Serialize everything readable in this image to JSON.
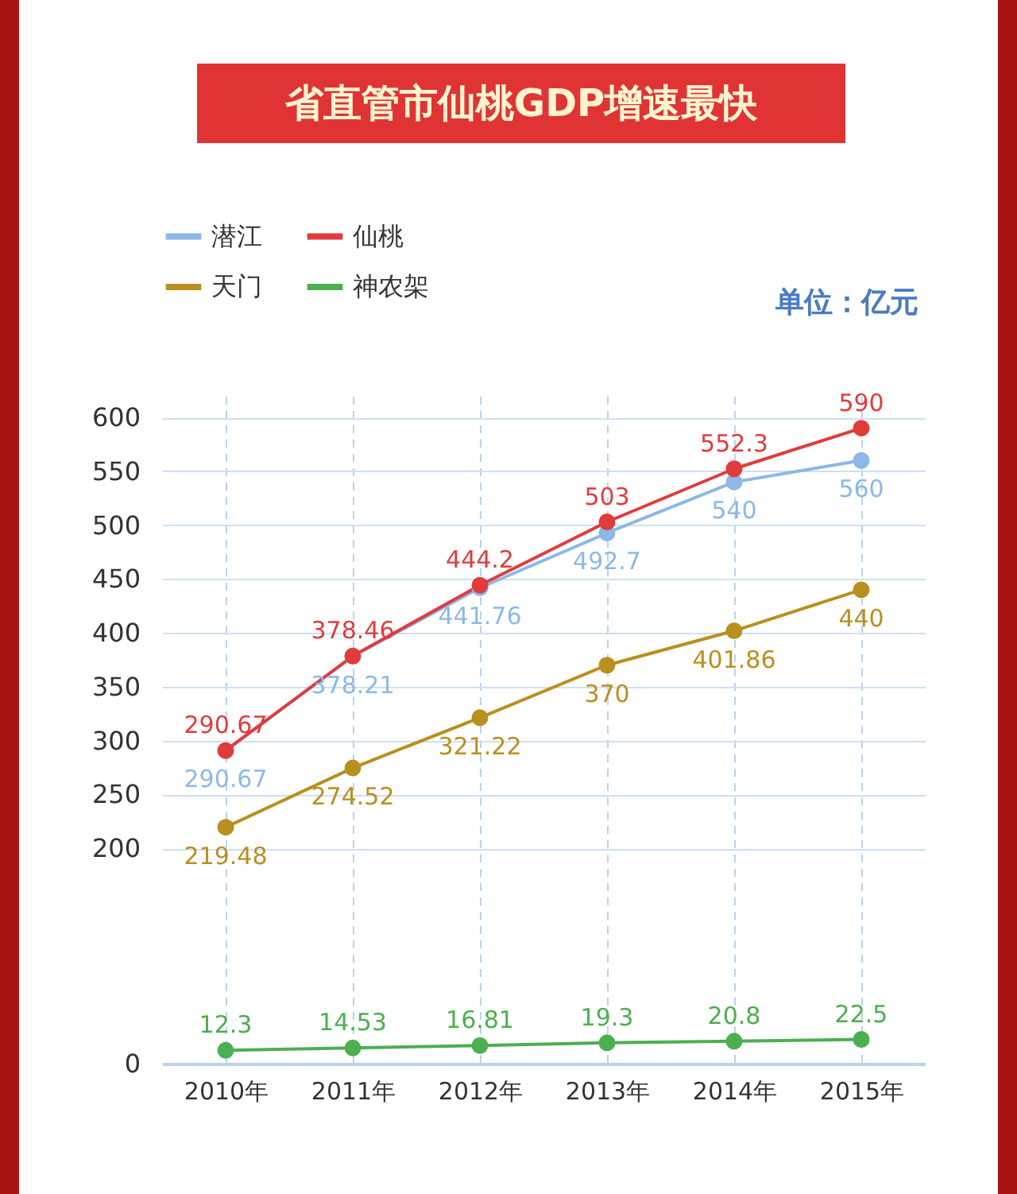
{
  "chart_data": {
    "type": "line",
    "title": "省直管市仙桃GDP增速最快",
    "annotations": [
      "单位：亿元"
    ],
    "categories": [
      "2010年",
      "2011年",
      "2012年",
      "2013年",
      "2014年",
      "2015年"
    ],
    "series": [
      {
        "name": "潜江",
        "color": "#8db8e8",
        "values": [
          290.67,
          378.21,
          441.76,
          492.7,
          540,
          560
        ]
      },
      {
        "name": "仙桃",
        "color": "#e03c3c",
        "values": [
          290.67,
          378.46,
          444.2,
          503,
          552.3,
          590
        ]
      },
      {
        "name": "天门",
        "color": "#b8901e",
        "values": [
          219.48,
          274.52,
          321.22,
          370,
          401.86,
          440
        ]
      },
      {
        "name": "神农架",
        "color": "#4caf50",
        "values": [
          12.3,
          14.53,
          16.81,
          19.3,
          20.8,
          22.5
        ]
      }
    ],
    "ylim": [
      0,
      620
    ],
    "yticks": [
      0,
      200,
      250,
      300,
      350,
      400,
      450,
      500,
      550,
      600
    ],
    "grid": true,
    "legend": "top left",
    "marker": "circle",
    "data_labels": true
  }
}
